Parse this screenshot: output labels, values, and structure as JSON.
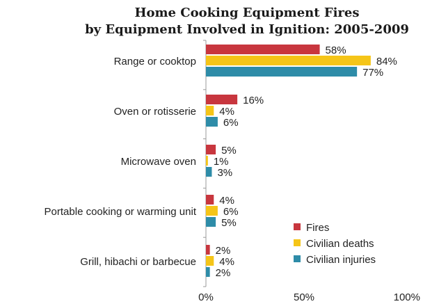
{
  "chart_data": {
    "type": "bar",
    "orientation": "horizontal",
    "title": "Home Cooking Equipment Fires",
    "subtitle": "by Equipment Involved in Ignition: 2005-2009",
    "categories": [
      "Range or cooktop",
      "Oven or rotisserie",
      "Microwave oven",
      "Portable cooking or warming unit",
      "Grill, hibachi or barbecue"
    ],
    "series": [
      {
        "name": "Fires",
        "values": [
          58,
          16,
          5,
          4,
          2
        ],
        "color": "#c8363e"
      },
      {
        "name": "Civilian deaths",
        "values": [
          84,
          4,
          1,
          6,
          4
        ],
        "color": "#f5c518"
      },
      {
        "name": "Civilian injuries",
        "values": [
          77,
          6,
          3,
          5,
          2
        ],
        "color": "#2e8ca8"
      }
    ],
    "value_suffix": "%",
    "xlim": [
      0,
      100
    ],
    "xticks": [
      "0%",
      "50%",
      "100%"
    ],
    "xlabel": "",
    "ylabel": "",
    "grid": false,
    "legend_position": "bottom-right"
  }
}
